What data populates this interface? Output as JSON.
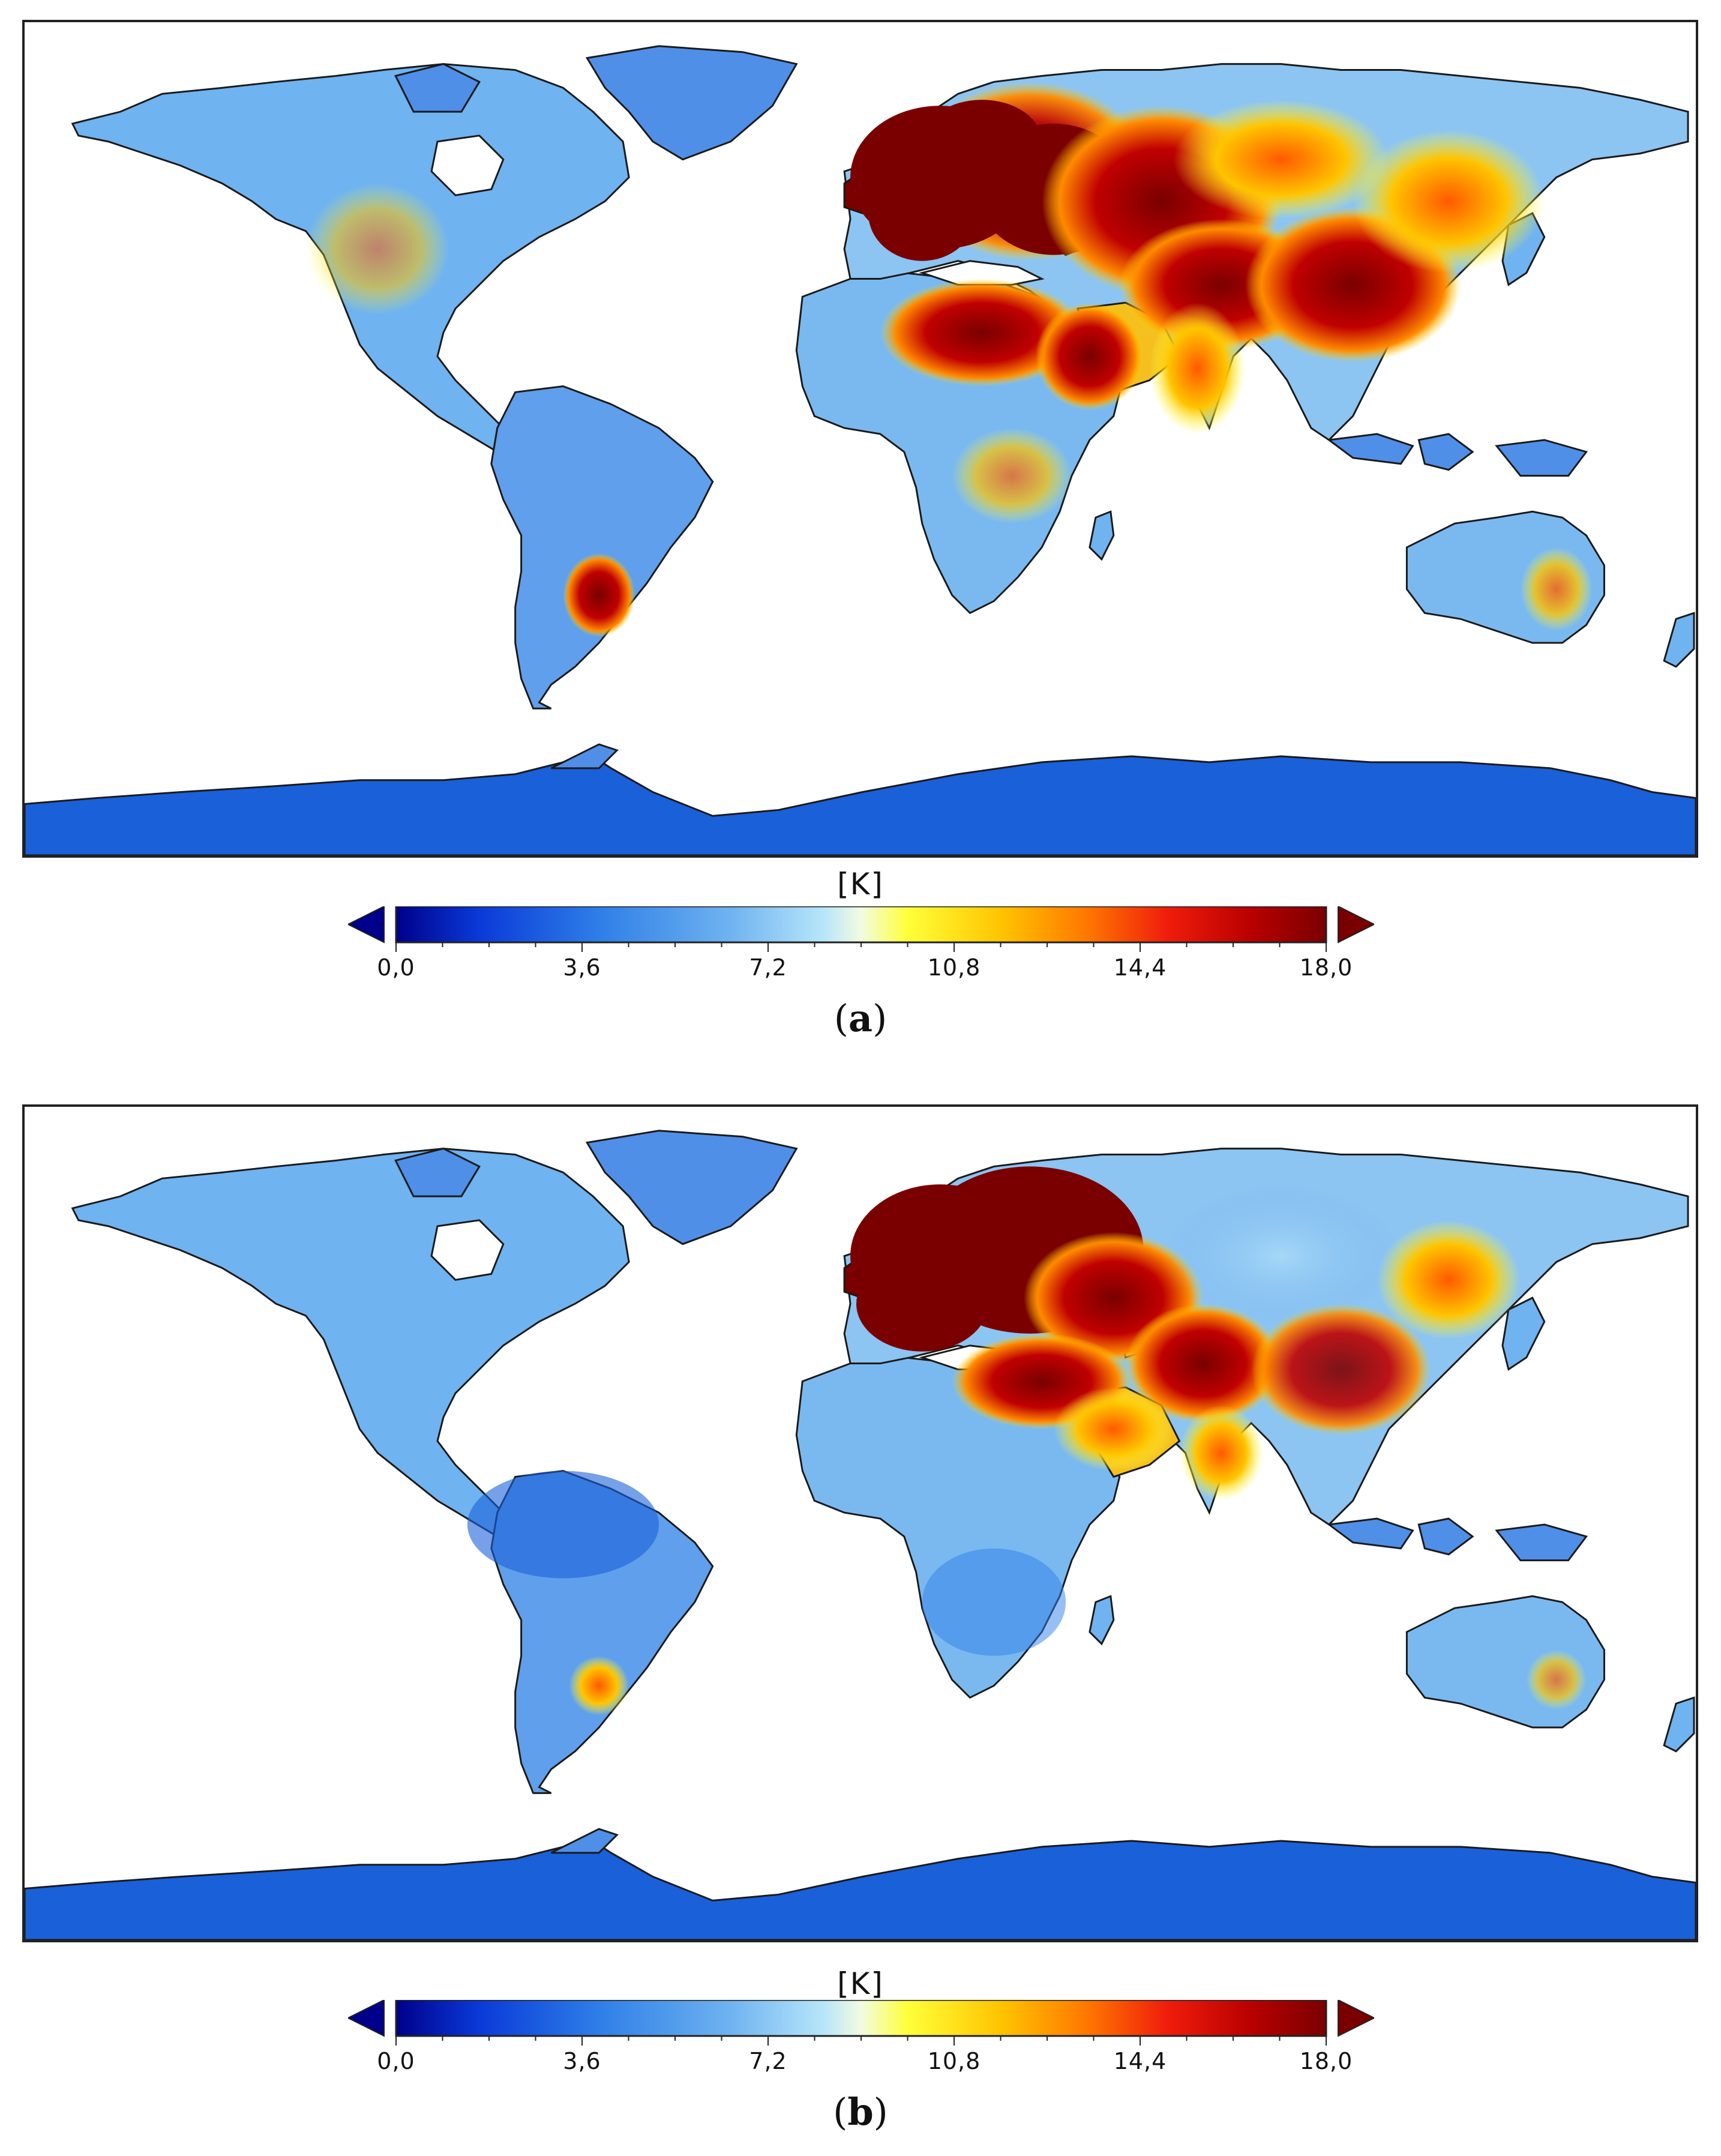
{
  "colorbar": {
    "unit": "[K]",
    "ticks": [
      "0,0",
      "3,6",
      "7,2",
      "10,8",
      "14,4",
      "18,0"
    ],
    "range": [
      0,
      18
    ],
    "extend": "both",
    "colors": [
      "#00008b",
      "#0a3ad8",
      "#2f7fe8",
      "#6fb3f0",
      "#b7e6fa",
      "#f2fbe0",
      "#ffff3a",
      "#ffc400",
      "#ff7a00",
      "#ef1c0c",
      "#b80000",
      "#7a0000"
    ]
  },
  "panels": [
    {
      "id": "a",
      "caption_label": "a",
      "paren_open": "(",
      "paren_close": ")"
    },
    {
      "id": "b",
      "caption_label": "b",
      "paren_open": "(",
      "paren_close": ")"
    }
  ],
  "legend": {
    "position": "bottom-center"
  },
  "colors": {
    "land_low": "#4f8fe8",
    "land_mid": "#8cc4f2",
    "hot": "#e0300c",
    "extreme": "#7a0000",
    "ocean": "#ffffff",
    "coast": "#1a1a1a"
  }
}
